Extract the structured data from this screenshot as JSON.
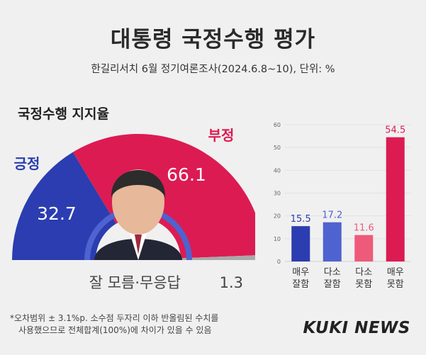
{
  "title": "대통령 국정수행 평가",
  "subtitle": "한길리서치 6월 정기여론조사(2024.6.8~10), 단위: %",
  "footnote": {
    "line1": "*오차범위 ± 3.1%p. 소수점 두자리 이하 반올림된 수치를",
    "line2": "사용했으므로 전체합계(100%)에 차이가 있을 수 있음"
  },
  "logo": "KUKI NEWS",
  "colors": {
    "positive": "#2b3db0",
    "negative": "#dc1b52",
    "neutral": "#a9a9a9",
    "bar_strong_pos": "#2b3db0",
    "bar_mild_pos": "#4e63d0",
    "bar_mild_neg": "#ee5a7a",
    "bar_strong_neg": "#dc1b52"
  },
  "chart_data": [
    {
      "type": "pie",
      "title": "국정수행 지지율",
      "slices": [
        {
          "label": "긍정",
          "value": 32.7,
          "color": "#2b3db0"
        },
        {
          "label": "부정",
          "value": 66.1,
          "color": "#dc1b52"
        },
        {
          "label": "잘 모름·무응답",
          "value": 1.3,
          "color": "#a9a9a9"
        }
      ]
    },
    {
      "type": "bar",
      "categories": [
        "매우 잘함",
        "다소 잘함",
        "다소 못함",
        "매우 못함"
      ],
      "values": [
        15.5,
        17.2,
        11.6,
        54.5
      ],
      "value_labels": [
        "15.5",
        "17.2",
        "11.6",
        "54.5"
      ],
      "colors": [
        "#2b3db0",
        "#4e63d0",
        "#ee5a7a",
        "#dc1b52"
      ],
      "ylim": [
        0,
        60
      ],
      "yticks": [
        "0",
        "10",
        "20",
        "30",
        "40",
        "50",
        "60"
      ],
      "grid": true
    }
  ]
}
